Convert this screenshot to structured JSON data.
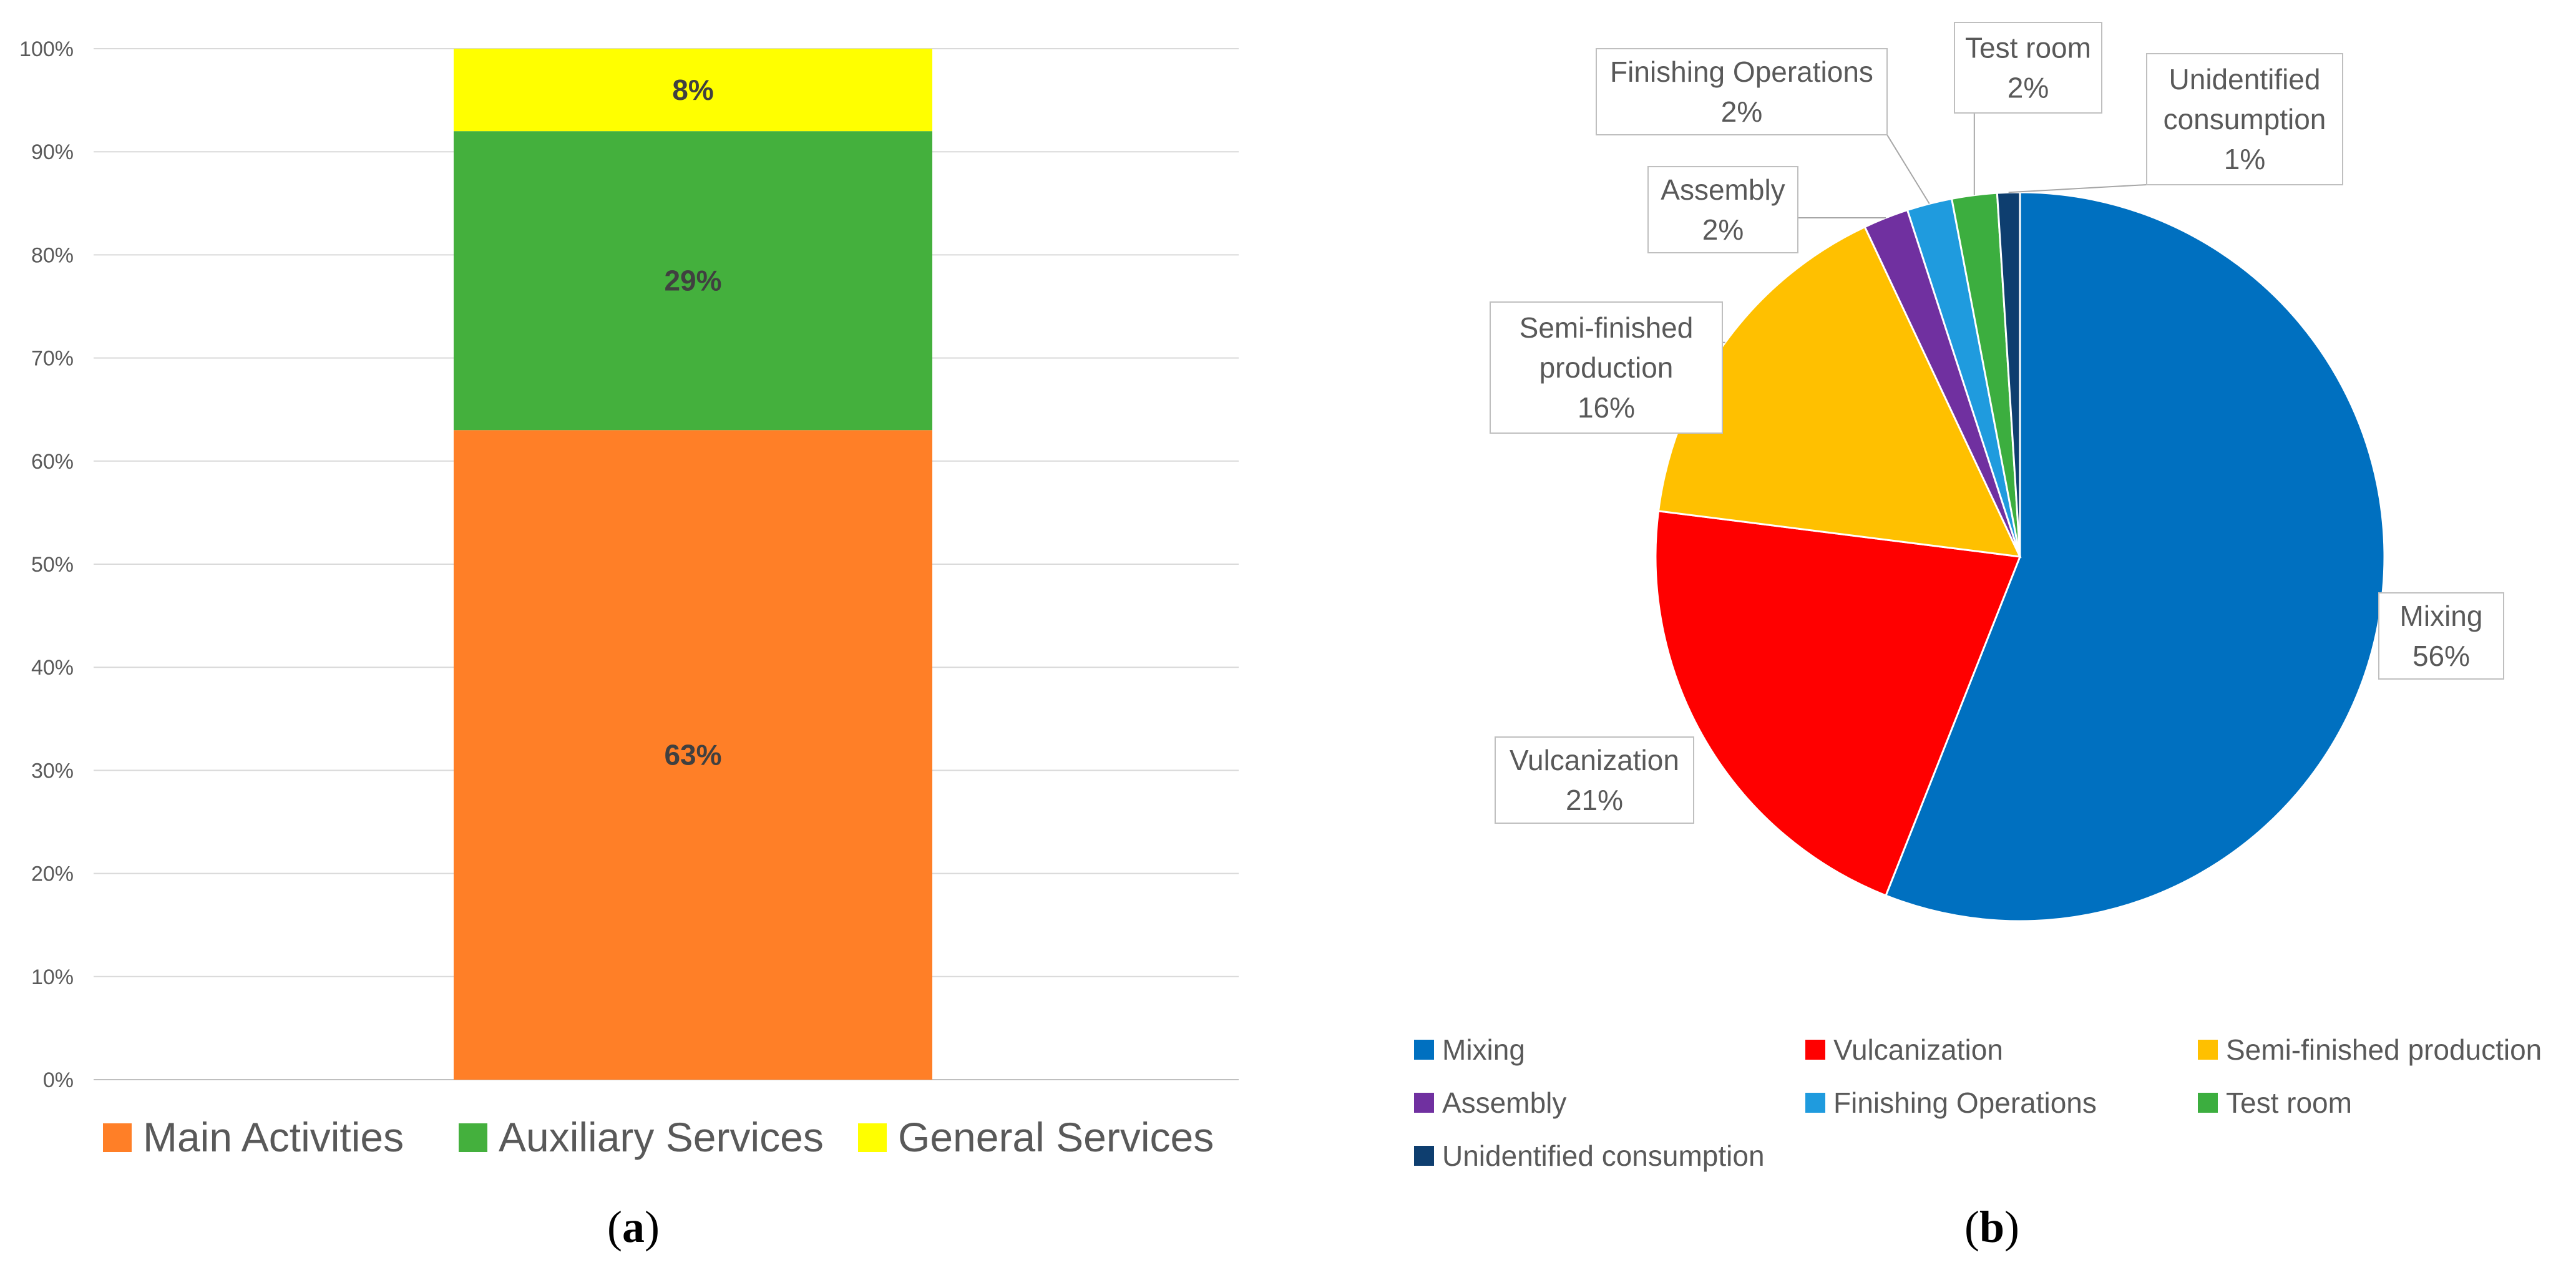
{
  "chart_data": [
    {
      "type": "bar",
      "stacked": true,
      "categories": [
        ""
      ],
      "series": [
        {
          "name": "Main Activities",
          "values": [
            63
          ],
          "label": "63%",
          "color": "#FF7F27"
        },
        {
          "name": "Auxiliary Services",
          "values": [
            29
          ],
          "label": "29%",
          "color": "#44B03D"
        },
        {
          "name": "General Services",
          "values": [
            8
          ],
          "label": "8%",
          "color": "#FFFF00"
        }
      ],
      "ylim": [
        0,
        100
      ],
      "yticks": [
        "0%",
        "10%",
        "20%",
        "30%",
        "40%",
        "50%",
        "60%",
        "70%",
        "80%",
        "90%",
        "100%"
      ],
      "grid": true,
      "legend": "bottom",
      "title": "",
      "caption": "(a)",
      "caption_letter": "a"
    },
    {
      "type": "pie",
      "slices": [
        {
          "name": "Mixing",
          "value": 56,
          "label": "56%",
          "color": "#0070C0"
        },
        {
          "name": "Vulcanization",
          "value": 21,
          "label": "21%",
          "color": "#FF0000"
        },
        {
          "name": "Semi-finished production",
          "value": 16,
          "label": "16%",
          "color": "#FFC000",
          "callout_name": [
            "Semi-finished",
            "production"
          ]
        },
        {
          "name": "Assembly",
          "value": 2,
          "label": "2%",
          "color": "#7030A0"
        },
        {
          "name": "Finishing Operations",
          "value": 2,
          "label": "2%",
          "color": "#1F9BDE"
        },
        {
          "name": "Test room",
          "value": 2,
          "label": "2%",
          "color": "#3CAE3F"
        },
        {
          "name": "Unidentified consumption",
          "value": 1,
          "label": "1%",
          "color": "#0E3E6F",
          "callout_name": [
            "Unidentified",
            "consumption"
          ]
        }
      ],
      "legend": "bottom",
      "title": "",
      "caption": "(b)",
      "caption_letter": "b"
    }
  ]
}
